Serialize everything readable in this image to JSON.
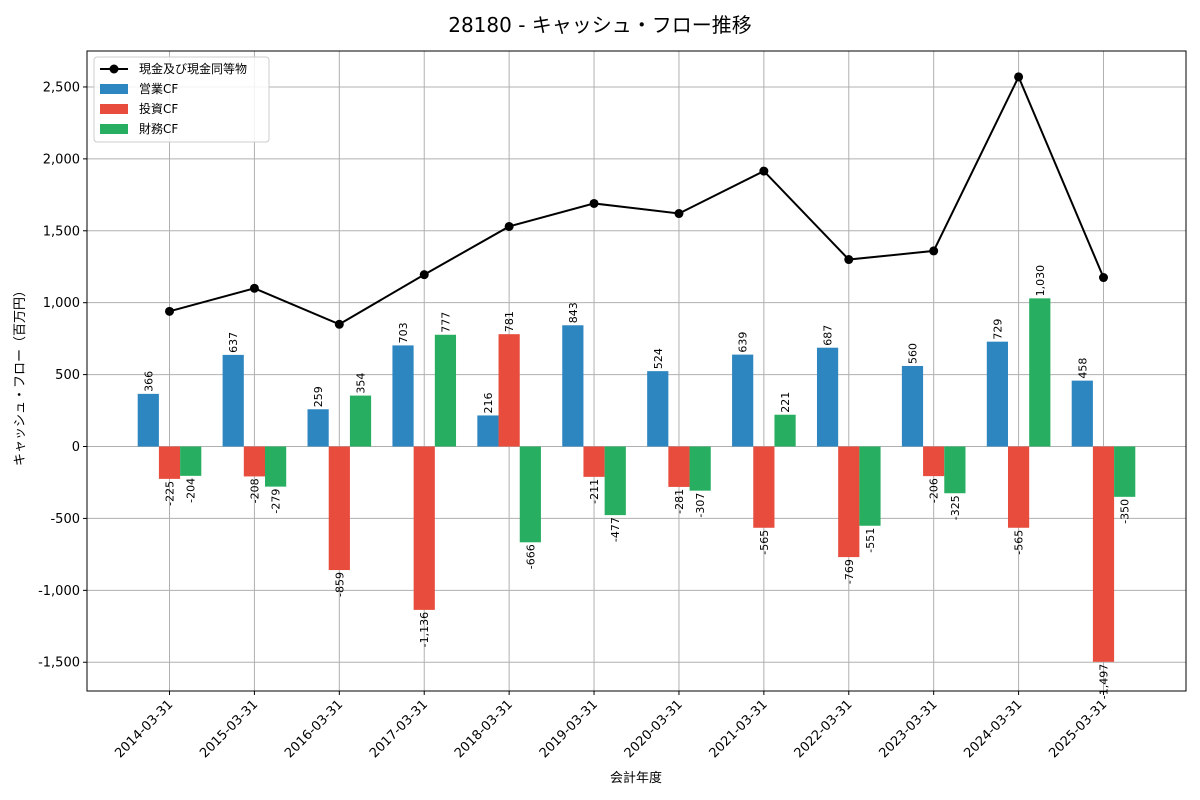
{
  "chart_data": {
    "type": "bar",
    "title": "28180 - キャッシュ・フロー推移",
    "xlabel": "会計年度",
    "ylabel": "キャッシュ・フロー（百万円）",
    "ylim": [
      -1700,
      2750
    ],
    "yticks": [
      -1500,
      -1000,
      -500,
      0,
      500,
      1000,
      1500,
      2000,
      2500
    ],
    "ytick_labels": [
      "-1,500",
      "-1,000",
      "-500",
      "0",
      "500",
      "1,000",
      "1,500",
      "2,000",
      "2,500"
    ],
    "grid": true,
    "legend_position": "top-left",
    "categories": [
      "2014-03-31",
      "2015-03-31",
      "2016-03-31",
      "2017-03-31",
      "2018-03-31",
      "2019-03-31",
      "2020-03-31",
      "2021-03-31",
      "2022-03-31",
      "2023-03-31",
      "2024-03-31",
      "2025-03-31"
    ],
    "line_series": {
      "name": "現金及び現金同等物",
      "color": "#000000",
      "values": [
        940,
        1100,
        850,
        1195,
        1530,
        1690,
        1620,
        1915,
        1300,
        1360,
        2570,
        1175
      ]
    },
    "series": [
      {
        "name": "営業CF",
        "color": "#2e86c1",
        "values": [
          366,
          637,
          259,
          703,
          216,
          843,
          524,
          639,
          687,
          560,
          729,
          458
        ],
        "labels": [
          "366",
          "637",
          "259",
          "703",
          "216",
          "843",
          "524",
          "639",
          "687",
          "560",
          "729",
          "458"
        ]
      },
      {
        "name": "投資CF",
        "color": "#e74c3c",
        "values": [
          -225,
          -208,
          -859,
          -1136,
          781,
          -211,
          -281,
          -565,
          -769,
          -206,
          -565,
          -1497
        ],
        "labels": [
          "-225",
          "-208",
          "-859",
          "-1,136",
          "781",
          "-211",
          "-281",
          "-565",
          "-769",
          "-206",
          "-565",
          "-1,497"
        ]
      },
      {
        "name": "財務CF",
        "color": "#27ae60",
        "values": [
          -204,
          -279,
          354,
          777,
          -666,
          -477,
          -307,
          221,
          -551,
          -325,
          1030,
          -350
        ],
        "labels": [
          "-204",
          "-279",
          "354",
          "777",
          "-666",
          "-477",
          "-307",
          "221",
          "-551",
          "-325",
          "1,030",
          "-350"
        ]
      }
    ]
  }
}
